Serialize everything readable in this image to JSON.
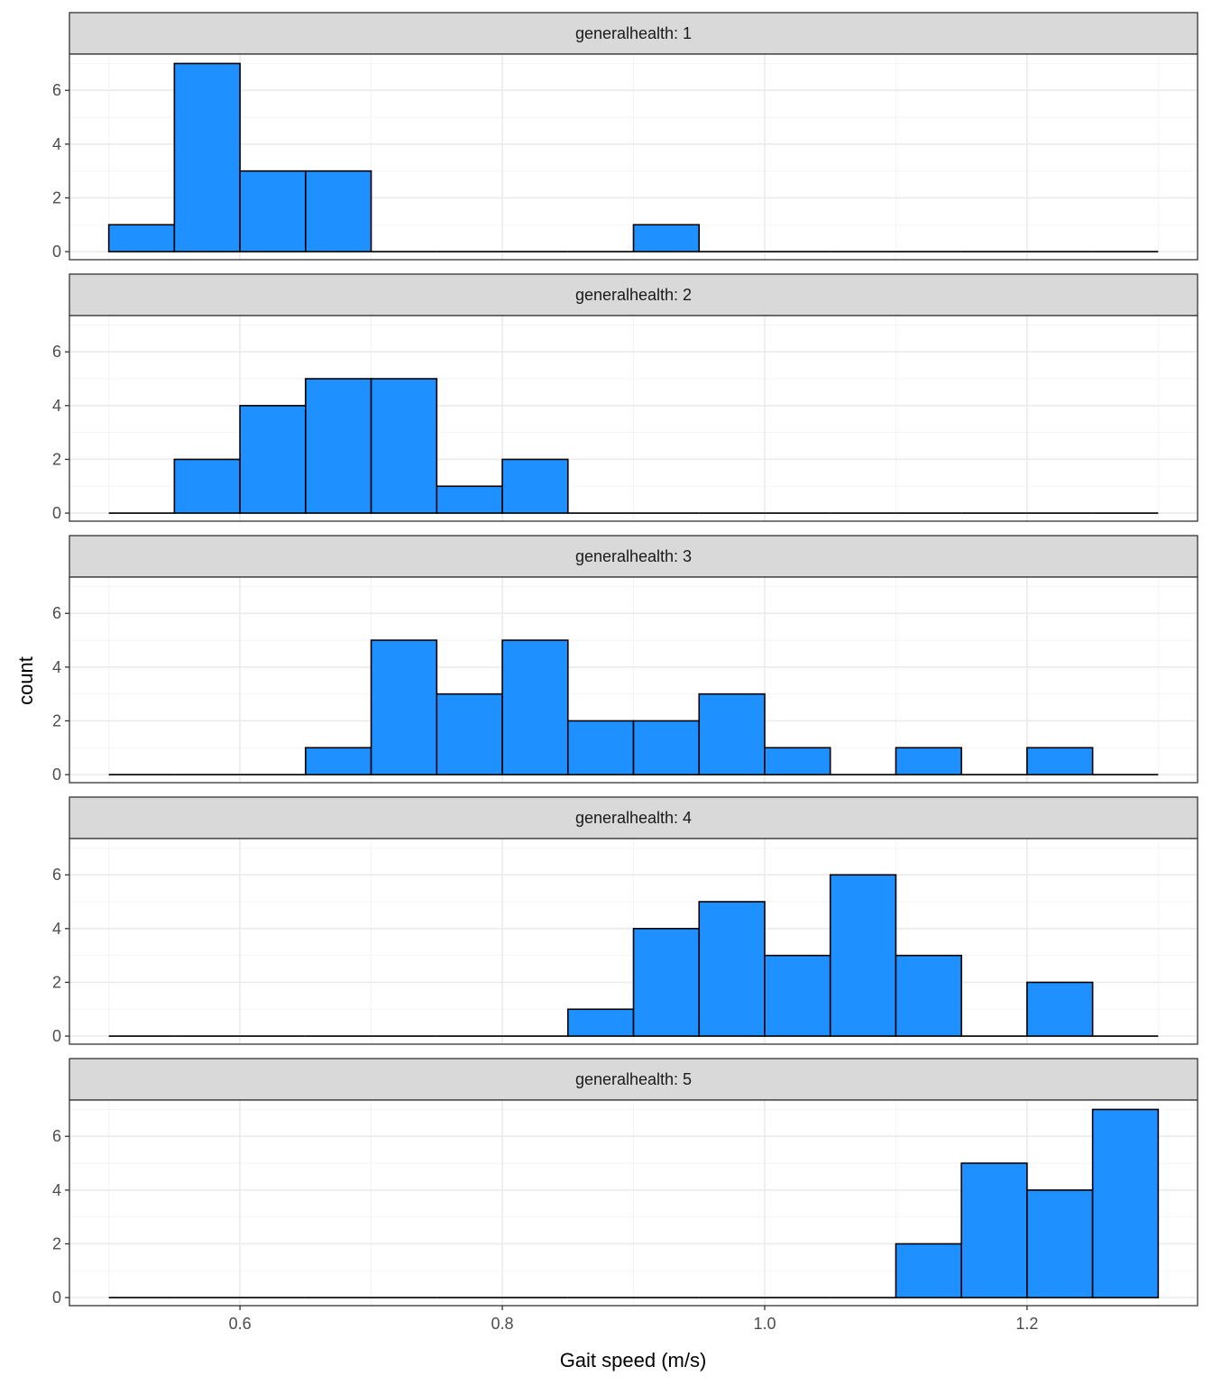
{
  "chart_data": {
    "type": "bar",
    "subtype": "faceted-histogram",
    "xlabel": "Gait speed (m/s)",
    "ylabel": "count",
    "xlim": [
      0.47,
      1.33
    ],
    "ylim": [
      -0.3,
      7.35
    ],
    "x_ticks": [
      0.6,
      0.8,
      1.0,
      1.2
    ],
    "x_tick_labels": [
      "0.6",
      "0.8",
      "1.0",
      "1.2"
    ],
    "y_ticks": [
      0,
      2,
      4,
      6
    ],
    "y_tick_labels": [
      "0",
      "2",
      "4",
      "6"
    ],
    "bin_width": 0.05,
    "bin_starts": [
      0.5,
      0.55,
      0.6,
      0.65,
      0.7,
      0.75,
      0.8,
      0.85,
      0.9,
      0.95,
      1.0,
      1.05,
      1.1,
      1.15,
      1.2,
      1.25
    ],
    "grid": true,
    "bar_fill": "#1E90FF",
    "bar_outline": "#000000",
    "strip_fill": "#D9D9D9",
    "panels": [
      {
        "label": "generalhealth: 1",
        "counts": [
          1,
          7,
          3,
          3,
          0,
          0,
          0,
          0,
          1,
          0,
          0,
          0,
          0,
          0,
          0,
          0
        ]
      },
      {
        "label": "generalhealth: 2",
        "counts": [
          0,
          2,
          4,
          5,
          5,
          1,
          2,
          0,
          0,
          0,
          0,
          0,
          0,
          0,
          0,
          0
        ]
      },
      {
        "label": "generalhealth: 3",
        "counts": [
          0,
          0,
          0,
          1,
          5,
          3,
          5,
          2,
          2,
          3,
          1,
          0,
          1,
          0,
          1,
          0
        ]
      },
      {
        "label": "generalhealth: 4",
        "counts": [
          0,
          0,
          0,
          0,
          0,
          0,
          0,
          1,
          4,
          5,
          3,
          6,
          3,
          0,
          2,
          0
        ]
      },
      {
        "label": "generalhealth: 5",
        "counts": [
          0,
          0,
          0,
          0,
          0,
          0,
          0,
          0,
          0,
          0,
          0,
          0,
          2,
          5,
          4,
          7
        ]
      }
    ]
  }
}
